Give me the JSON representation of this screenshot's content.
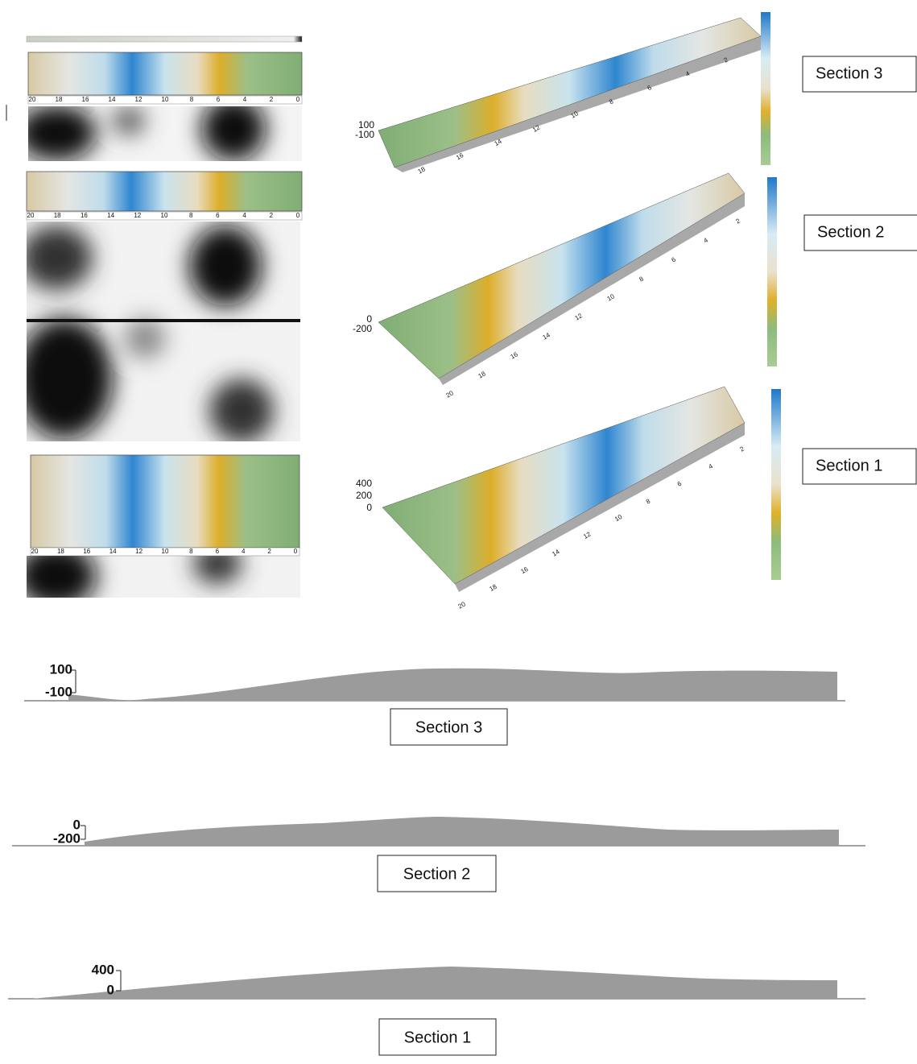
{
  "left_axis_ticks": [
    "20",
    "18",
    "16",
    "14",
    "12",
    "10",
    "8",
    "6",
    "4",
    "2",
    "0"
  ],
  "surfaces": [
    {
      "label": "Section 3",
      "z_ticks": [
        "100",
        "-100"
      ],
      "edge_ticks": [
        "18",
        "16",
        "14",
        "12",
        "10",
        "8",
        "6",
        "4",
        "2"
      ]
    },
    {
      "label": "Section 2",
      "z_ticks": [
        "0",
        "-200"
      ],
      "edge_ticks": [
        "20",
        "18",
        "16",
        "14",
        "12",
        "10",
        "8",
        "6",
        "4",
        "2"
      ]
    },
    {
      "label": "Section 1",
      "z_ticks": [
        "400",
        "200",
        "0"
      ],
      "edge_ticks": [
        "20",
        "18",
        "16",
        "14",
        "12",
        "10",
        "8",
        "6",
        "4",
        "2"
      ]
    }
  ],
  "profiles": [
    {
      "label": "Section 3",
      "z_ticks": [
        "100",
        "-100"
      ]
    },
    {
      "label": "Section 2",
      "z_ticks": [
        "0",
        "-200"
      ]
    },
    {
      "label": "Section 1",
      "z_ticks": [
        "400",
        "0"
      ]
    }
  ]
}
